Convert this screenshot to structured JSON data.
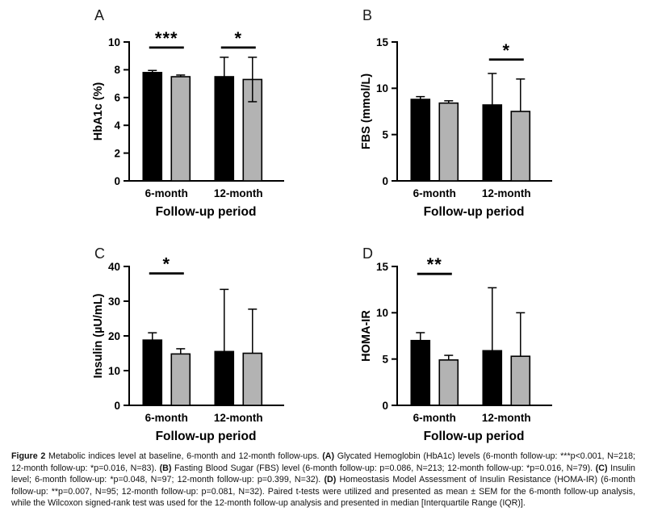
{
  "figure": {
    "background": "#ffffff",
    "bar_black": "#000000",
    "bar_gray": "#b3b3b3"
  },
  "chart_data": [
    {
      "panel_label": "A",
      "type": "bar",
      "title": "",
      "ylabel": "HbA1c (%)",
      "xlabel": "Follow-up period",
      "categories": [
        "6-month",
        "12-month"
      ],
      "ylim": [
        0,
        10
      ],
      "yticks": [
        0,
        2,
        4,
        6,
        8,
        10
      ],
      "grid": false,
      "legend": "none",
      "series": [
        {
          "name": "black-bar",
          "color": "#000000",
          "values": [
            7.8,
            7.5
          ],
          "errors_up": [
            0.15,
            1.4
          ],
          "errors_down": [
            0,
            0
          ]
        },
        {
          "name": "gray-bar",
          "color": "#b3b3b3",
          "values": [
            7.5,
            7.3
          ],
          "errors_up": [
            0.12,
            1.6
          ],
          "errors_down": [
            0,
            1.6
          ]
        }
      ],
      "significance": [
        {
          "category": "6-month",
          "category_index": 0,
          "label": "***",
          "line_y": 9.6
        },
        {
          "category": "12-month",
          "category_index": 1,
          "label": "*",
          "line_y": 9.6
        }
      ]
    },
    {
      "panel_label": "B",
      "type": "bar",
      "title": "",
      "ylabel": "FBS (mmol/L)",
      "xlabel": "Follow-up period",
      "categories": [
        "6-month",
        "12-month"
      ],
      "ylim": [
        0,
        15
      ],
      "yticks": [
        0,
        5,
        10,
        15
      ],
      "grid": false,
      "legend": "none",
      "series": [
        {
          "name": "black-bar",
          "color": "#000000",
          "values": [
            8.8,
            8.2
          ],
          "errors_up": [
            0.3,
            3.4
          ],
          "errors_down": [
            0,
            0
          ]
        },
        {
          "name": "gray-bar",
          "color": "#b3b3b3",
          "values": [
            8.4,
            7.5
          ],
          "errors_up": [
            0.25,
            3.5
          ],
          "errors_down": [
            0,
            0
          ]
        }
      ],
      "significance": [
        {
          "category": "12-month",
          "category_index": 1,
          "label": "*",
          "line_y": 13.1
        }
      ]
    },
    {
      "panel_label": "C",
      "type": "bar",
      "title": "",
      "ylabel": "Insulin (µU/mL)",
      "xlabel": "Follow-up period",
      "categories": [
        "6-month",
        "12-month"
      ],
      "ylim": [
        0,
        40
      ],
      "yticks": [
        0,
        10,
        20,
        30,
        40
      ],
      "grid": false,
      "legend": "none",
      "series": [
        {
          "name": "black-bar",
          "color": "#000000",
          "values": [
            18.8,
            15.5
          ],
          "errors_up": [
            2.1,
            17.9
          ],
          "errors_down": [
            0,
            0
          ]
        },
        {
          "name": "gray-bar",
          "color": "#b3b3b3",
          "values": [
            14.8,
            15.0
          ],
          "errors_up": [
            1.5,
            12.7
          ],
          "errors_down": [
            0,
            0
          ]
        }
      ],
      "significance": [
        {
          "category": "6-month",
          "category_index": 0,
          "label": "*",
          "line_y": 38.0
        }
      ]
    },
    {
      "panel_label": "D",
      "type": "bar",
      "title": "",
      "ylabel": "HOMA-IR",
      "xlabel": "Follow-up period",
      "categories": [
        "6-month",
        "12-month"
      ],
      "ylim": [
        0,
        15
      ],
      "yticks": [
        0,
        5,
        10,
        15
      ],
      "grid": false,
      "legend": "none",
      "series": [
        {
          "name": "black-bar",
          "color": "#000000",
          "values": [
            7.0,
            5.9
          ],
          "errors_up": [
            0.85,
            6.8
          ],
          "errors_down": [
            0,
            0
          ]
        },
        {
          "name": "gray-bar",
          "color": "#b3b3b3",
          "values": [
            4.9,
            5.3
          ],
          "errors_up": [
            0.5,
            4.7
          ],
          "errors_down": [
            0,
            0
          ]
        }
      ],
      "significance": [
        {
          "category": "6-month",
          "category_index": 0,
          "label": "**",
          "line_y": 14.2
        }
      ]
    }
  ],
  "caption": {
    "segments": [
      {
        "text": "Figure 2",
        "bold": true
      },
      {
        "text": " Metabolic indices level at baseline, 6-month and 12-month follow-ups. ",
        "bold": false
      },
      {
        "text": "(A)",
        "bold": true
      },
      {
        "text": " Glycated Hemoglobin (HbA1c) levels (6-month follow-up: ***p<0.001, N=218; 12-month follow-up: *p=0.016, N=83). ",
        "bold": false
      },
      {
        "text": "(B)",
        "bold": true
      },
      {
        "text": " Fasting Blood Sugar (FBS) level (6-month follow-up: p=0.086, N=213; 12-month follow-up: *p=0.016, N=79). ",
        "bold": false
      },
      {
        "text": "(C)",
        "bold": true
      },
      {
        "text": " Insulin level; 6-month follow-up: *p=0.048, N=97; 12-month follow-up: p=0.399, N=32). ",
        "bold": false
      },
      {
        "text": "(D)",
        "bold": true
      },
      {
        "text": " Homeostasis Model Assessment of Insulin Resistance (HOMA-IR) (6-month follow-up: **p=0.007, N=95; 12-month follow-up: p=0.081, N=32). Paired t-tests were utilized and presented as mean ± SEM for the 6-month follow-up analysis, while the Wilcoxon signed-rank test was used for the 12-month follow-up analysis and presented in median [Interquartile Range (IQR)].",
        "bold": false
      }
    ]
  }
}
